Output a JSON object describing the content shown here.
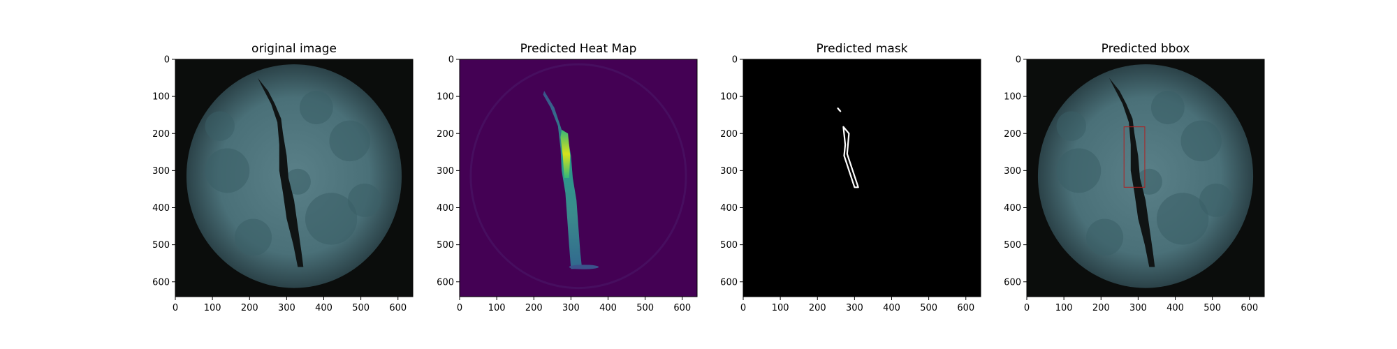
{
  "figure": {
    "background": "#ffffff",
    "panel_count": 4
  },
  "chart_data": [
    {
      "type": "image",
      "title": "original image",
      "content": "photo of a round cracked specimen with a dark vertical crack",
      "colors": {
        "background": "#0b0d0c",
        "specimen": "#4a7078",
        "crack": "#101414"
      },
      "x_ticks": [
        0,
        100,
        200,
        300,
        400,
        500,
        600
      ],
      "y_ticks": [
        0,
        100,
        200,
        300,
        400,
        500,
        600
      ],
      "xlim": [
        0,
        640
      ],
      "ylim": [
        640,
        0
      ],
      "grid": false
    },
    {
      "type": "heatmap",
      "title": "Predicted Heat Map",
      "colormap": "viridis",
      "colors": {
        "low": "#440154",
        "mid": "#3b8a8c",
        "high": "#d7e21a"
      },
      "x_ticks": [
        0,
        100,
        200,
        300,
        400,
        500,
        600
      ],
      "y_ticks": [
        0,
        100,
        200,
        300,
        400,
        500,
        600
      ],
      "xlim": [
        0,
        640
      ],
      "ylim": [
        640,
        0
      ],
      "grid": false
    },
    {
      "type": "image",
      "title": "Predicted mask",
      "colors": {
        "background": "#000000",
        "outline": "#ffffff"
      },
      "mask_polygons": [
        [
          [
            255,
            132
          ],
          [
            262,
            140
          ],
          [
            259,
            137
          ]
        ],
        [
          [
            270,
            182
          ],
          [
            285,
            200
          ],
          [
            280,
            255
          ],
          [
            310,
            345
          ],
          [
            300,
            345
          ],
          [
            272,
            260
          ],
          [
            275,
            230
          ]
        ]
      ],
      "x_ticks": [
        0,
        100,
        200,
        300,
        400,
        500,
        600
      ],
      "y_ticks": [
        0,
        100,
        200,
        300,
        400,
        500,
        600
      ],
      "xlim": [
        0,
        640
      ],
      "ylim": [
        640,
        0
      ],
      "grid": false
    },
    {
      "type": "image",
      "title": "Predicted bbox",
      "colors": {
        "background": "#0b0d0c",
        "specimen": "#4a7078",
        "crack": "#101414",
        "bbox": "#b02020"
      },
      "bbox": {
        "x_min": 262,
        "y_min": 182,
        "x_max": 318,
        "y_max": 345
      },
      "x_ticks": [
        0,
        100,
        200,
        300,
        400,
        500,
        600
      ],
      "y_ticks": [
        0,
        100,
        200,
        300,
        400,
        500,
        600
      ],
      "xlim": [
        0,
        640
      ],
      "ylim": [
        640,
        0
      ],
      "grid": false
    }
  ]
}
